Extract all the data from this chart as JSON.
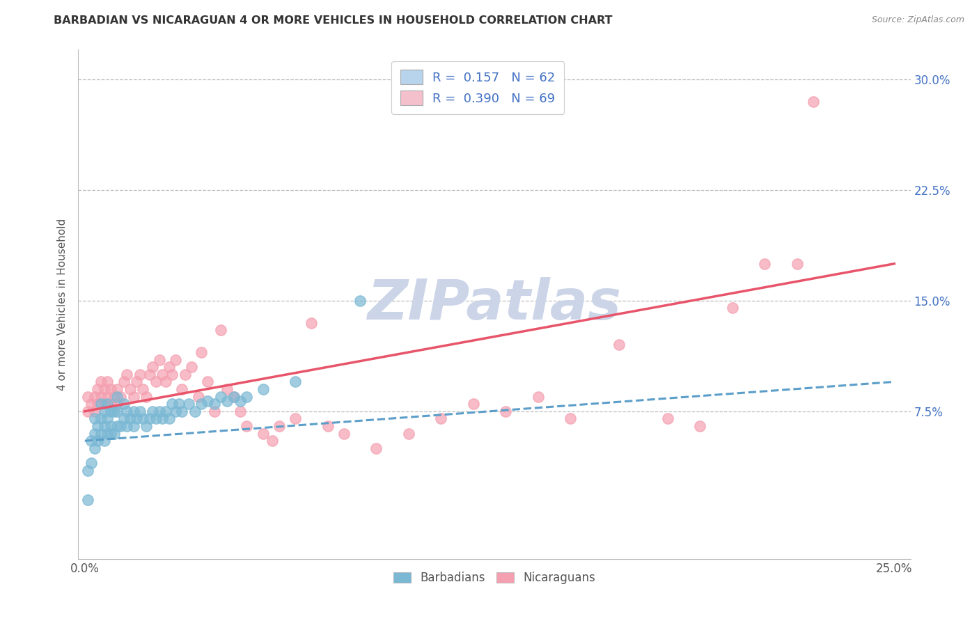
{
  "title": "BARBADIAN VS NICARAGUAN 4 OR MORE VEHICLES IN HOUSEHOLD CORRELATION CHART",
  "source": "Source: ZipAtlas.com",
  "ylabel": "4 or more Vehicles in Household",
  "x_tick_labels": [
    "0.0%",
    "",
    "",
    "",
    "",
    "25.0%"
  ],
  "x_ticks": [
    0.0,
    0.05,
    0.1,
    0.15,
    0.2,
    0.25
  ],
  "y_tick_labels_right": [
    "7.5%",
    "15.0%",
    "22.5%",
    "30.0%"
  ],
  "y_ticks_right": [
    0.075,
    0.15,
    0.225,
    0.3
  ],
  "y_ticks_grid": [
    0.075,
    0.15,
    0.225,
    0.3
  ],
  "xlim": [
    -0.002,
    0.255
  ],
  "ylim": [
    -0.025,
    0.32
  ],
  "barbadian_color": "#7bb8d4",
  "nicaraguan_color": "#f4a0b0",
  "barbadian_line_color": "#5b9ec9",
  "nicaraguan_line_color": "#e8546a",
  "watermark": "ZIPatlas",
  "watermark_color": "#ccd5e8",
  "legend_label_blue": "R =  0.157   N = 62",
  "legend_label_pink": "R =  0.390   N = 69",
  "legend_color_blue": "#b8d4ec",
  "legend_color_pink": "#f4c0cc",
  "bottom_legend_barbadians": "Barbadians",
  "bottom_legend_nicaraguans": "Nicaraguans",
  "barbadian_x": [
    0.001,
    0.001,
    0.002,
    0.002,
    0.003,
    0.003,
    0.003,
    0.004,
    0.004,
    0.005,
    0.005,
    0.005,
    0.006,
    0.006,
    0.006,
    0.007,
    0.007,
    0.007,
    0.008,
    0.008,
    0.008,
    0.009,
    0.009,
    0.01,
    0.01,
    0.01,
    0.011,
    0.012,
    0.012,
    0.013,
    0.013,
    0.014,
    0.015,
    0.015,
    0.016,
    0.017,
    0.018,
    0.019,
    0.02,
    0.021,
    0.022,
    0.023,
    0.024,
    0.025,
    0.026,
    0.027,
    0.028,
    0.029,
    0.03,
    0.032,
    0.034,
    0.036,
    0.038,
    0.04,
    0.042,
    0.044,
    0.046,
    0.048,
    0.05,
    0.055,
    0.065,
    0.085
  ],
  "barbadian_y": [
    0.015,
    0.035,
    0.04,
    0.055,
    0.05,
    0.06,
    0.07,
    0.055,
    0.065,
    0.06,
    0.07,
    0.08,
    0.055,
    0.065,
    0.075,
    0.06,
    0.07,
    0.08,
    0.06,
    0.065,
    0.075,
    0.06,
    0.075,
    0.065,
    0.075,
    0.085,
    0.065,
    0.07,
    0.08,
    0.065,
    0.075,
    0.07,
    0.065,
    0.075,
    0.07,
    0.075,
    0.07,
    0.065,
    0.07,
    0.075,
    0.07,
    0.075,
    0.07,
    0.075,
    0.07,
    0.08,
    0.075,
    0.08,
    0.075,
    0.08,
    0.075,
    0.08,
    0.082,
    0.08,
    0.085,
    0.082,
    0.085,
    0.082,
    0.085,
    0.09,
    0.095,
    0.15
  ],
  "nicaraguan_x": [
    0.001,
    0.001,
    0.002,
    0.003,
    0.003,
    0.004,
    0.004,
    0.005,
    0.005,
    0.006,
    0.006,
    0.007,
    0.007,
    0.008,
    0.008,
    0.009,
    0.01,
    0.01,
    0.011,
    0.012,
    0.013,
    0.014,
    0.015,
    0.016,
    0.017,
    0.018,
    0.019,
    0.02,
    0.021,
    0.022,
    0.023,
    0.024,
    0.025,
    0.026,
    0.027,
    0.028,
    0.03,
    0.031,
    0.033,
    0.035,
    0.036,
    0.038,
    0.04,
    0.042,
    0.044,
    0.046,
    0.048,
    0.05,
    0.055,
    0.058,
    0.06,
    0.065,
    0.07,
    0.075,
    0.08,
    0.09,
    0.1,
    0.11,
    0.12,
    0.13,
    0.14,
    0.15,
    0.165,
    0.18,
    0.19,
    0.2,
    0.21,
    0.22,
    0.225
  ],
  "nicaraguan_y": [
    0.075,
    0.085,
    0.08,
    0.075,
    0.085,
    0.08,
    0.09,
    0.085,
    0.095,
    0.08,
    0.09,
    0.085,
    0.095,
    0.08,
    0.09,
    0.085,
    0.08,
    0.09,
    0.085,
    0.095,
    0.1,
    0.09,
    0.085,
    0.095,
    0.1,
    0.09,
    0.085,
    0.1,
    0.105,
    0.095,
    0.11,
    0.1,
    0.095,
    0.105,
    0.1,
    0.11,
    0.09,
    0.1,
    0.105,
    0.085,
    0.115,
    0.095,
    0.075,
    0.13,
    0.09,
    0.085,
    0.075,
    0.065,
    0.06,
    0.055,
    0.065,
    0.07,
    0.135,
    0.065,
    0.06,
    0.05,
    0.06,
    0.07,
    0.08,
    0.075,
    0.085,
    0.07,
    0.12,
    0.07,
    0.065,
    0.145,
    0.175,
    0.175,
    0.285
  ],
  "barb_line_x0": 0.0,
  "barb_line_x1": 0.25,
  "barb_line_y0": 0.055,
  "barb_line_y1": 0.095,
  "nica_line_x0": 0.0,
  "nica_line_x1": 0.25,
  "nica_line_y0": 0.075,
  "nica_line_y1": 0.175
}
